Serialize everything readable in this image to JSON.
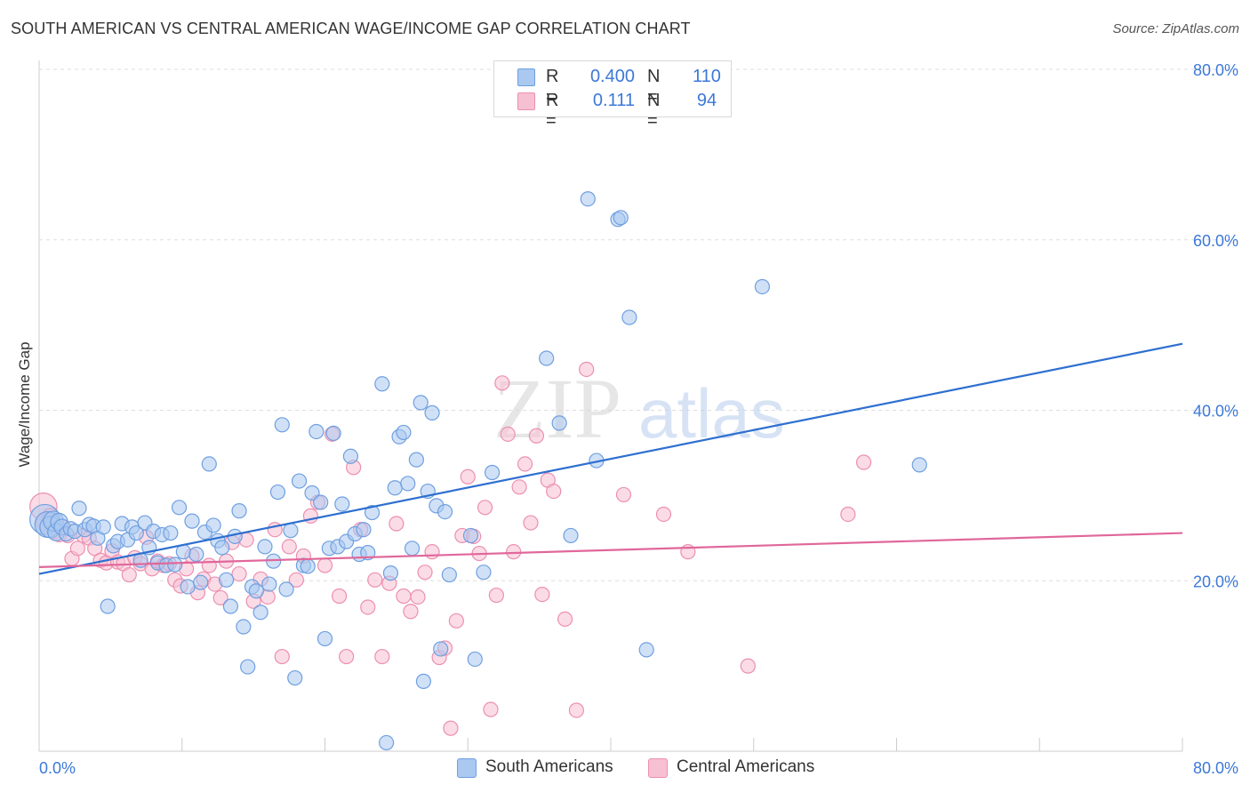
{
  "title": "SOUTH AMERICAN VS CENTRAL AMERICAN WAGE/INCOME GAP CORRELATION CHART",
  "source": "Source: ZipAtlas.com",
  "watermark": {
    "zip": "ZIP",
    "atlas": "atlas"
  },
  "legend": {
    "rows": [
      {
        "r_label": "R =",
        "r_value": "0.400",
        "n_label": "N =",
        "n_value": "110"
      },
      {
        "r_label": "R =",
        "r_value": "0.111",
        "n_label": "N =",
        "n_value": "94"
      }
    ]
  },
  "bottom_legend": [
    "South Americans",
    "Central Americans"
  ],
  "colors": {
    "blue_fill": "#aac8f0",
    "blue_stroke": "#6f9fe0",
    "blue_line": "#2e6fd0",
    "pink_fill": "#f7c0d2",
    "pink_stroke": "#ec8fb0",
    "pink_line": "#e0679a",
    "tick_label": "#3c78d8",
    "grid": "#dddddd"
  },
  "chart_data": {
    "type": "scatter",
    "title": "SOUTH AMERICAN VS CENTRAL AMERICAN WAGE/INCOME GAP CORRELATION CHART",
    "xlabel": "",
    "ylabel": "Wage/Income Gap",
    "xlim": [
      0,
      80
    ],
    "ylim": [
      0,
      80
    ],
    "x_tick_labels": [
      "0.0%",
      "80.0%"
    ],
    "y_tick_labels": [
      "20.0%",
      "40.0%",
      "60.0%",
      "80.0%"
    ],
    "y_ticks": [
      20,
      40,
      60,
      80
    ],
    "grid": true,
    "legend_position": "top-center",
    "series": [
      {
        "name": "South Americans",
        "r": 0.4,
        "n": 110,
        "trend": [
          [
            0,
            20.8
          ],
          [
            80,
            47.8
          ]
        ],
        "points": [
          [
            0.4,
            27.2,
            2.1
          ],
          [
            0.6,
            26.6,
            1.8
          ],
          [
            0.8,
            26.3,
            1.5
          ],
          [
            1.0,
            27.0,
            1.4
          ],
          [
            1.2,
            25.7,
            1.2
          ],
          [
            1.4,
            26.9,
            1.2
          ],
          [
            1.6,
            26.3,
            1.1
          ],
          [
            1.9,
            25.5,
            1.0
          ],
          [
            2.2,
            26.1,
            1.0
          ],
          [
            2.5,
            25.8,
            1.0
          ],
          [
            2.8,
            28.5,
            1.0
          ],
          [
            3.2,
            26.0,
            1.0
          ],
          [
            3.5,
            26.6,
            1.0
          ],
          [
            3.8,
            26.4,
            1.0
          ],
          [
            4.1,
            25.0,
            1.0
          ],
          [
            4.5,
            26.3,
            1.0
          ],
          [
            4.8,
            17.0,
            1.0
          ],
          [
            5.2,
            24.1,
            1.0
          ],
          [
            5.5,
            24.6,
            1.0
          ],
          [
            5.8,
            26.7,
            1.0
          ],
          [
            6.2,
            24.8,
            1.0
          ],
          [
            6.5,
            26.3,
            1.0
          ],
          [
            6.8,
            25.6,
            1.0
          ],
          [
            7.1,
            22.4,
            1.0
          ],
          [
            7.4,
            26.8,
            1.0
          ],
          [
            7.7,
            23.9,
            1.0
          ],
          [
            8.0,
            25.8,
            1.0
          ],
          [
            8.3,
            22.1,
            1.0
          ],
          [
            8.6,
            25.4,
            1.0
          ],
          [
            8.9,
            21.8,
            1.0
          ],
          [
            9.2,
            25.6,
            1.0
          ],
          [
            9.5,
            21.9,
            1.0
          ],
          [
            9.8,
            28.6,
            1.0
          ],
          [
            10.1,
            23.4,
            1.0
          ],
          [
            10.4,
            19.3,
            1.0
          ],
          [
            10.7,
            27.0,
            1.0
          ],
          [
            11.0,
            23.1,
            1.0
          ],
          [
            11.3,
            19.8,
            1.0
          ],
          [
            11.6,
            25.7,
            1.0
          ],
          [
            11.9,
            33.7,
            1.0
          ],
          [
            12.2,
            26.5,
            1.0
          ],
          [
            12.5,
            24.7,
            1.0
          ],
          [
            12.8,
            23.9,
            1.0
          ],
          [
            13.1,
            20.1,
            1.0
          ],
          [
            13.4,
            17.0,
            1.0
          ],
          [
            13.7,
            25.2,
            1.0
          ],
          [
            14.0,
            28.2,
            1.0
          ],
          [
            14.3,
            14.6,
            1.0
          ],
          [
            14.6,
            9.9,
            1.0
          ],
          [
            14.9,
            19.3,
            1.0
          ],
          [
            15.2,
            18.8,
            1.0
          ],
          [
            15.5,
            16.3,
            1.0
          ],
          [
            15.8,
            24.0,
            1.0
          ],
          [
            16.1,
            19.6,
            1.0
          ],
          [
            16.4,
            22.3,
            1.0
          ],
          [
            16.7,
            30.4,
            1.0
          ],
          [
            17.0,
            38.3,
            1.0
          ],
          [
            17.3,
            19.0,
            1.0
          ],
          [
            17.6,
            25.9,
            1.0
          ],
          [
            17.9,
            8.6,
            1.0
          ],
          [
            18.2,
            31.7,
            1.0
          ],
          [
            18.5,
            21.8,
            1.0
          ],
          [
            18.8,
            21.7,
            1.0
          ],
          [
            19.1,
            30.3,
            1.0
          ],
          [
            19.4,
            37.5,
            1.0
          ],
          [
            19.7,
            29.2,
            1.0
          ],
          [
            20.0,
            13.2,
            1.0
          ],
          [
            20.3,
            23.8,
            1.0
          ],
          [
            20.6,
            37.3,
            1.0
          ],
          [
            20.9,
            24.0,
            1.0
          ],
          [
            21.2,
            29.0,
            1.0
          ],
          [
            21.5,
            24.6,
            1.0
          ],
          [
            21.8,
            34.6,
            1.0
          ],
          [
            22.1,
            25.5,
            1.0
          ],
          [
            22.4,
            23.1,
            1.0
          ],
          [
            22.7,
            26.0,
            1.0
          ],
          [
            23.0,
            23.3,
            1.0
          ],
          [
            23.3,
            28.0,
            1.0
          ],
          [
            24.0,
            43.1,
            1.0
          ],
          [
            24.3,
            1.0,
            1.0
          ],
          [
            24.6,
            20.9,
            1.0
          ],
          [
            24.9,
            30.9,
            1.0
          ],
          [
            25.2,
            36.9,
            1.0
          ],
          [
            25.5,
            37.4,
            1.0
          ],
          [
            25.8,
            31.4,
            1.0
          ],
          [
            26.1,
            23.8,
            1.0
          ],
          [
            26.4,
            34.2,
            1.0
          ],
          [
            26.7,
            40.9,
            1.0
          ],
          [
            26.9,
            8.2,
            1.0
          ],
          [
            27.2,
            30.5,
            1.0
          ],
          [
            27.5,
            39.7,
            1.0
          ],
          [
            27.8,
            28.8,
            1.0
          ],
          [
            28.1,
            12.0,
            1.0
          ],
          [
            28.4,
            28.1,
            1.0
          ],
          [
            28.7,
            20.7,
            1.0
          ],
          [
            30.2,
            25.3,
            1.0
          ],
          [
            30.5,
            10.8,
            1.0
          ],
          [
            31.1,
            21.0,
            1.0
          ],
          [
            31.7,
            32.7,
            1.0
          ],
          [
            35.5,
            46.1,
            1.0
          ],
          [
            36.4,
            38.5,
            1.0
          ],
          [
            37.2,
            25.3,
            1.0
          ],
          [
            38.4,
            64.8,
            1.0
          ],
          [
            39.0,
            34.1,
            1.0
          ],
          [
            40.5,
            62.4,
            1.0
          ],
          [
            40.7,
            62.6,
            1.0
          ],
          [
            41.3,
            50.9,
            1.0
          ],
          [
            42.5,
            11.9,
            1.0
          ],
          [
            50.6,
            54.5,
            1.0
          ],
          [
            61.6,
            33.6,
            1.0
          ]
        ]
      },
      {
        "name": "Central Americans",
        "r": 0.111,
        "n": 94,
        "trend": [
          [
            0,
            21.6
          ],
          [
            80,
            25.6
          ]
        ],
        "points": [
          [
            0.3,
            28.7,
            1.9
          ],
          [
            0.5,
            26.9,
            1.4
          ],
          [
            0.8,
            27.5,
            1.2
          ],
          [
            1.1,
            25.9,
            1.1
          ],
          [
            1.4,
            25.4,
            1.0
          ],
          [
            1.7,
            26.3,
            1.0
          ],
          [
            2.0,
            25.3,
            1.0
          ],
          [
            2.3,
            22.6,
            1.0
          ],
          [
            2.7,
            23.8,
            1.0
          ],
          [
            3.1,
            25.3,
            1.0
          ],
          [
            3.5,
            25.0,
            1.0
          ],
          [
            3.9,
            23.8,
            1.0
          ],
          [
            4.3,
            22.4,
            1.0
          ],
          [
            4.7,
            22.1,
            1.0
          ],
          [
            5.1,
            23.5,
            1.0
          ],
          [
            5.5,
            22.2,
            1.0
          ],
          [
            5.9,
            22.0,
            1.0
          ],
          [
            6.3,
            20.7,
            1.0
          ],
          [
            6.7,
            22.7,
            1.0
          ],
          [
            7.1,
            22.0,
            1.0
          ],
          [
            7.5,
            25.1,
            1.0
          ],
          [
            7.9,
            21.4,
            1.0
          ],
          [
            8.3,
            22.3,
            1.0
          ],
          [
            8.7,
            21.8,
            1.0
          ],
          [
            9.1,
            22.0,
            1.0
          ],
          [
            9.5,
            20.1,
            1.0
          ],
          [
            9.9,
            19.4,
            1.0
          ],
          [
            10.3,
            21.4,
            1.0
          ],
          [
            10.7,
            22.9,
            1.0
          ],
          [
            11.1,
            18.6,
            1.0
          ],
          [
            11.5,
            20.2,
            1.0
          ],
          [
            11.9,
            21.8,
            1.0
          ],
          [
            12.3,
            19.6,
            1.0
          ],
          [
            12.7,
            18.0,
            1.0
          ],
          [
            13.1,
            22.3,
            1.0
          ],
          [
            13.5,
            24.5,
            1.0
          ],
          [
            14.0,
            20.8,
            1.0
          ],
          [
            14.5,
            24.8,
            1.0
          ],
          [
            15.0,
            17.6,
            1.0
          ],
          [
            15.5,
            20.2,
            1.0
          ],
          [
            16.0,
            18.1,
            1.0
          ],
          [
            16.5,
            26.0,
            1.0
          ],
          [
            17.0,
            11.1,
            1.0
          ],
          [
            17.5,
            24.0,
            1.0
          ],
          [
            18.0,
            20.1,
            1.0
          ],
          [
            18.5,
            22.9,
            1.0
          ],
          [
            19.0,
            27.6,
            1.0
          ],
          [
            19.5,
            29.2,
            1.0
          ],
          [
            20.0,
            21.8,
            1.0
          ],
          [
            20.5,
            37.2,
            1.0
          ],
          [
            21.0,
            18.2,
            1.0
          ],
          [
            21.5,
            11.1,
            1.0
          ],
          [
            22.0,
            33.3,
            1.0
          ],
          [
            22.5,
            26.0,
            1.0
          ],
          [
            23.0,
            16.9,
            1.0
          ],
          [
            23.5,
            20.1,
            1.0
          ],
          [
            24.0,
            11.1,
            1.0
          ],
          [
            24.5,
            19.7,
            1.0
          ],
          [
            25.0,
            26.7,
            1.0
          ],
          [
            25.5,
            18.2,
            1.0
          ],
          [
            26.0,
            16.4,
            1.0
          ],
          [
            26.5,
            18.1,
            1.0
          ],
          [
            27.0,
            21.0,
            1.0
          ],
          [
            27.5,
            23.4,
            1.0
          ],
          [
            28.0,
            11.0,
            1.0
          ],
          [
            28.4,
            12.1,
            1.0
          ],
          [
            28.8,
            2.7,
            1.0
          ],
          [
            29.2,
            15.3,
            1.0
          ],
          [
            29.6,
            25.3,
            1.0
          ],
          [
            30.0,
            32.2,
            1.0
          ],
          [
            30.4,
            25.2,
            1.0
          ],
          [
            30.8,
            23.2,
            1.0
          ],
          [
            31.2,
            28.6,
            1.0
          ],
          [
            31.6,
            4.9,
            1.0
          ],
          [
            32.0,
            18.3,
            1.0
          ],
          [
            32.4,
            43.2,
            1.0
          ],
          [
            32.8,
            37.2,
            1.0
          ],
          [
            33.2,
            23.4,
            1.0
          ],
          [
            33.6,
            31.0,
            1.0
          ],
          [
            34.0,
            33.7,
            1.0
          ],
          [
            34.4,
            26.8,
            1.0
          ],
          [
            34.8,
            37.0,
            1.0
          ],
          [
            35.2,
            18.4,
            1.0
          ],
          [
            35.6,
            31.8,
            1.0
          ],
          [
            36.0,
            30.5,
            1.0
          ],
          [
            36.8,
            15.5,
            1.0
          ],
          [
            37.6,
            4.8,
            1.0
          ],
          [
            38.3,
            44.8,
            1.0
          ],
          [
            40.9,
            30.1,
            1.0
          ],
          [
            43.7,
            27.8,
            1.0
          ],
          [
            45.4,
            23.4,
            1.0
          ],
          [
            49.6,
            10.0,
            1.0
          ],
          [
            56.6,
            27.8,
            1.0
          ],
          [
            57.7,
            33.9,
            1.0
          ]
        ]
      }
    ]
  }
}
